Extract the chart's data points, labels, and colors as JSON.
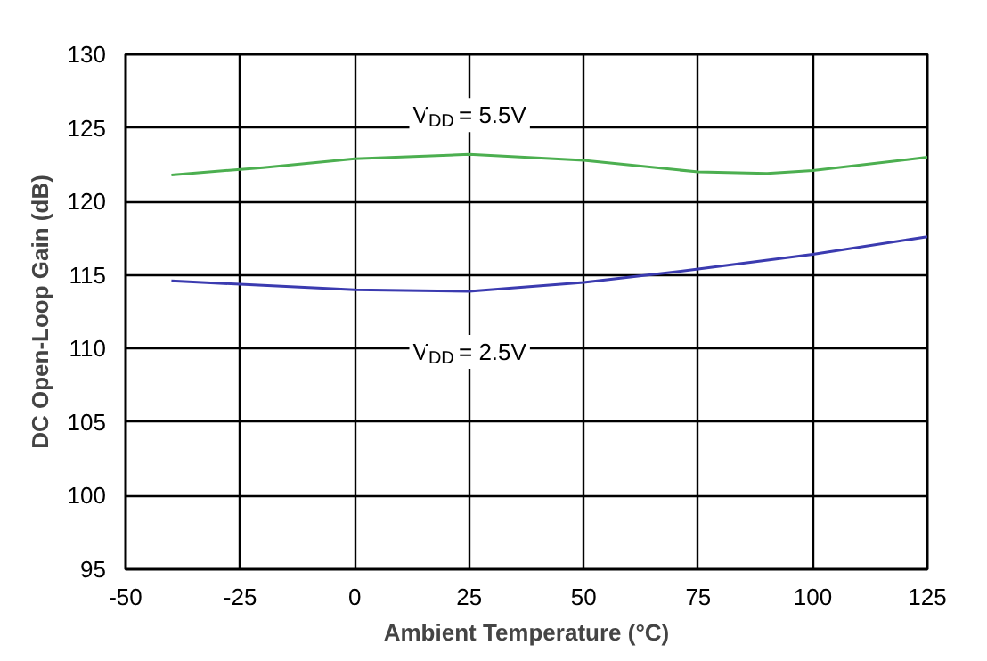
{
  "chart_data": {
    "type": "line",
    "xlabel": "Ambient Temperature (°C)",
    "ylabel": "DC Open-Loop Gain (dB)",
    "xlim": [
      -50,
      125
    ],
    "xticks": [
      -50,
      -25,
      0,
      25,
      50,
      75,
      100,
      125
    ],
    "ylim": [
      95,
      130
    ],
    "yticks": [
      95,
      100,
      105,
      110,
      115,
      120,
      125,
      130
    ],
    "grid": true,
    "marker": "none",
    "line_style": "solid",
    "series": [
      {
        "name": "V$_{DD}$ = 5.5V",
        "color": "#4caf50",
        "x": [
          -40,
          -20,
          0,
          25,
          50,
          75,
          90,
          100,
          125
        ],
        "values": [
          121.8,
          122.3,
          122.9,
          123.2,
          122.8,
          122.0,
          121.9,
          122.1,
          123.0
        ]
      },
      {
        "name": "V$_{DD}$ = 2.5V",
        "color": "#3b3bb0",
        "x": [
          -40,
          -20,
          0,
          25,
          50,
          75,
          100,
          125
        ],
        "values": [
          114.6,
          114.3,
          114.0,
          113.9,
          114.5,
          115.4,
          116.4,
          117.6
        ]
      }
    ]
  }
}
